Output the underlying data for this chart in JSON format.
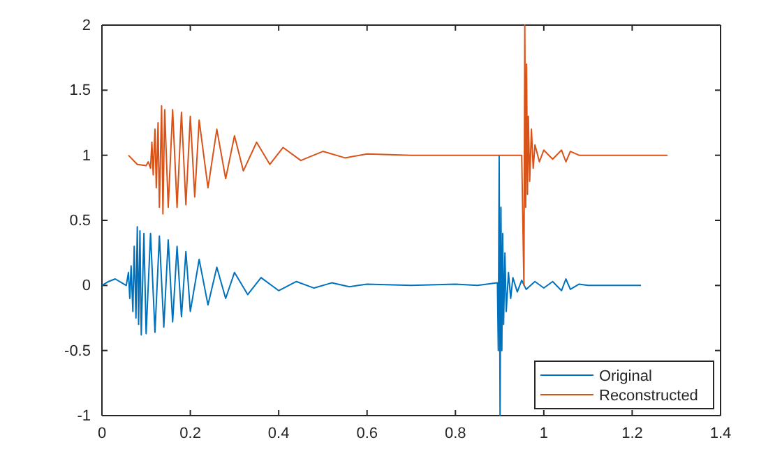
{
  "chart_data": {
    "type": "line",
    "xlim": [
      0,
      1.4
    ],
    "ylim": [
      -1,
      2
    ],
    "xticks": [
      0,
      0.2,
      0.4,
      0.6,
      0.8,
      1,
      1.2,
      1.4
    ],
    "yticks": [
      -1,
      -0.5,
      0,
      0.5,
      1,
      1.5,
      2
    ],
    "legend": "bottom right",
    "grid": false,
    "series": [
      {
        "name": "Original",
        "color": "#0072bd",
        "x": [
          0,
          0.015,
          0.03,
          0.045,
          0.055,
          0.06,
          0.063,
          0.066,
          0.07,
          0.073,
          0.077,
          0.08,
          0.083,
          0.086,
          0.089,
          0.095,
          0.1,
          0.11,
          0.12,
          0.13,
          0.14,
          0.15,
          0.16,
          0.17,
          0.18,
          0.19,
          0.2,
          0.22,
          0.24,
          0.26,
          0.28,
          0.3,
          0.33,
          0.36,
          0.4,
          0.44,
          0.48,
          0.52,
          0.56,
          0.6,
          0.7,
          0.8,
          0.85,
          0.895,
          0.897,
          0.899,
          0.901,
          0.903,
          0.905,
          0.907,
          0.909,
          0.912,
          0.915,
          0.92,
          0.925,
          0.93,
          0.94,
          0.95,
          0.96,
          0.98,
          1.0,
          1.02,
          1.04,
          1.05,
          1.06,
          1.08,
          1.1,
          1.22
        ],
        "values": [
          0,
          0.03,
          0.05,
          0.02,
          0,
          0.1,
          -0.1,
          0.15,
          -0.2,
          0.3,
          -0.25,
          0.45,
          -0.3,
          0.42,
          -0.38,
          0.4,
          -0.37,
          0.4,
          -0.36,
          0.38,
          -0.32,
          0.35,
          -0.28,
          0.3,
          -0.24,
          0.26,
          -0.2,
          0.2,
          -0.15,
          0.14,
          -0.1,
          0.1,
          -0.07,
          0.06,
          -0.04,
          0.03,
          -0.02,
          0.02,
          -0.01,
          0.01,
          0,
          0.01,
          0,
          0.02,
          -0.5,
          1.0,
          -1.0,
          0.6,
          -0.5,
          0.4,
          -0.3,
          0.25,
          -0.2,
          0.1,
          -0.1,
          0.06,
          -0.05,
          0.04,
          -0.03,
          0.03,
          -0.02,
          0.03,
          -0.04,
          0.05,
          -0.03,
          0.01,
          0,
          0
        ]
      },
      {
        "name": "Reconstructed",
        "color": "#d95319",
        "x": [
          0.06,
          0.08,
          0.1,
          0.105,
          0.11,
          0.113,
          0.116,
          0.12,
          0.123,
          0.127,
          0.13,
          0.135,
          0.138,
          0.142,
          0.15,
          0.16,
          0.17,
          0.18,
          0.19,
          0.2,
          0.21,
          0.22,
          0.24,
          0.26,
          0.28,
          0.3,
          0.32,
          0.35,
          0.38,
          0.41,
          0.45,
          0.5,
          0.55,
          0.6,
          0.7,
          0.8,
          0.95,
          0.955,
          0.957,
          0.959,
          0.961,
          0.963,
          0.965,
          0.968,
          0.972,
          0.976,
          0.98,
          0.99,
          1.0,
          1.02,
          1.04,
          1.05,
          1.06,
          1.08,
          1.28
        ],
        "values": [
          1.0,
          0.93,
          0.92,
          0.95,
          0.9,
          1.1,
          0.85,
          1.2,
          0.75,
          1.25,
          0.6,
          1.38,
          0.55,
          1.35,
          0.6,
          1.35,
          0.6,
          1.33,
          0.62,
          1.3,
          0.68,
          1.27,
          0.75,
          1.2,
          0.82,
          1.15,
          0.88,
          1.1,
          0.93,
          1.06,
          0.96,
          1.03,
          0.98,
          1.01,
          1.0,
          1.0,
          1.0,
          0.0,
          2.0,
          0.6,
          1.7,
          0.7,
          1.3,
          0.8,
          1.2,
          0.9,
          1.08,
          0.95,
          1.04,
          0.97,
          1.04,
          0.95,
          1.03,
          1.0,
          1.0
        ]
      }
    ]
  }
}
